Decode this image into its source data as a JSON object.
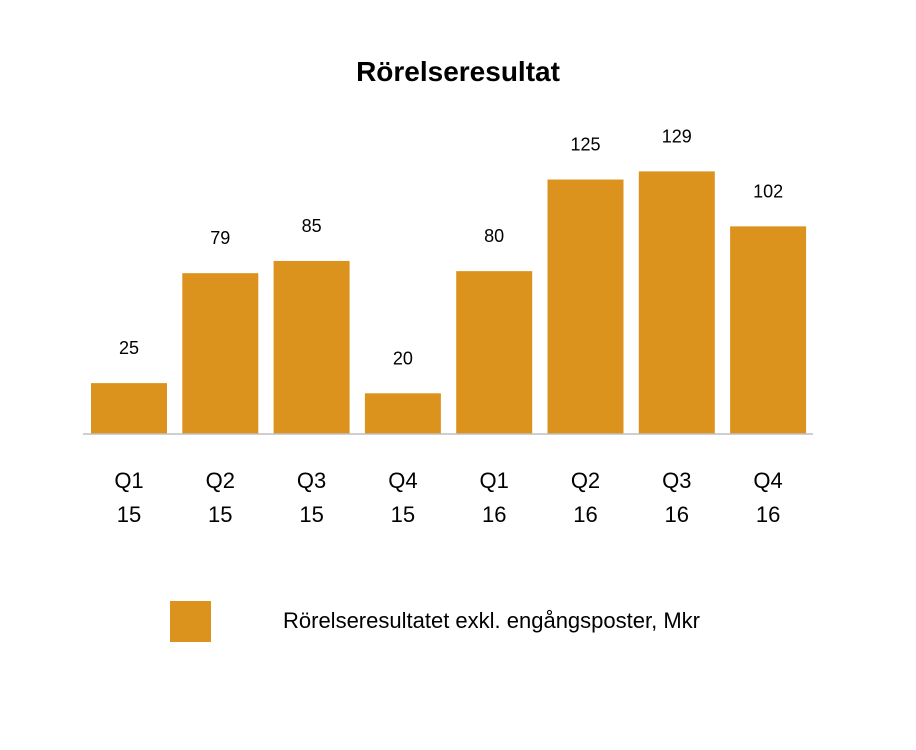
{
  "chart_data": {
    "type": "bar",
    "title": "Rörelseresultat",
    "categories": [
      [
        "Q1",
        "15"
      ],
      [
        "Q2",
        "15"
      ],
      [
        "Q3",
        "15"
      ],
      [
        "Q4",
        "15"
      ],
      [
        "Q1",
        "16"
      ],
      [
        "Q2",
        "16"
      ],
      [
        "Q3",
        "16"
      ],
      [
        "Q4",
        "16"
      ]
    ],
    "series": [
      {
        "name": "Rörelseresultatet exkl. engångsposter, Mkr",
        "values": [
          25,
          79,
          85,
          20,
          80,
          125,
          129,
          102
        ],
        "color": "#DC931E"
      }
    ],
    "data_labels": true,
    "ylim": [
      0,
      140
    ],
    "grid": false,
    "legend_position": "bottom"
  }
}
